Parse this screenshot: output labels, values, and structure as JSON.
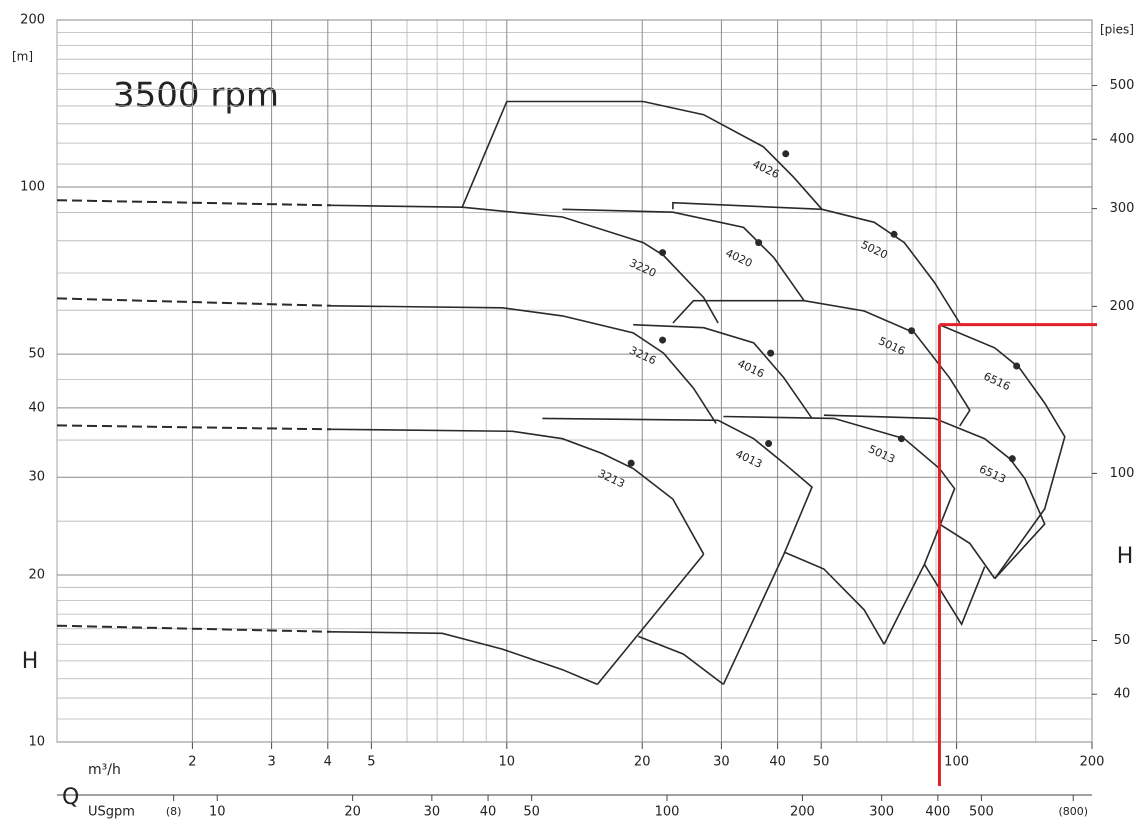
{
  "chart_data": {
    "type": "line",
    "title": "3500 rpm",
    "xlabel": "Q",
    "x_unit": "m³/h",
    "x2_unit": "USgpm",
    "ylabel": "H",
    "y_unit": "[m]",
    "y2label": "H",
    "y2_unit": "[pies]",
    "xscale": "log",
    "yscale": "log",
    "grid": true,
    "color": "#2a2a2a",
    "xlim": [
      1,
      200
    ],
    "xticks": [
      2,
      3,
      4,
      5,
      10,
      20,
      30,
      40,
      50,
      100,
      200
    ],
    "xminor": [
      1,
      6,
      7,
      8,
      9,
      60,
      70,
      80,
      90,
      150
    ],
    "x2lim": [
      4.403,
      880.6
    ],
    "x2ticks": [
      {
        "value": 8,
        "label": "(8)"
      },
      10,
      20,
      30,
      40,
      50,
      100,
      200,
      300,
      400,
      500,
      {
        "value": 800,
        "label": "(800)"
      }
    ],
    "ylim": [
      10,
      200
    ],
    "yticks": [
      10,
      20,
      30,
      40,
      50,
      100,
      200
    ],
    "yminor": [
      11,
      12,
      13,
      14,
      15,
      16,
      17,
      18,
      19,
      25,
      35,
      45,
      60,
      70,
      80,
      90,
      110,
      120,
      130,
      140,
      150,
      160,
      170,
      180,
      190
    ],
    "y2lim": [
      32.81,
      656.2
    ],
    "y2ticks": [
      40,
      50,
      100,
      200,
      300,
      400,
      500
    ],
    "series": [
      {
        "style": "dashed",
        "x": [
          1,
          4.07
        ],
        "values": [
          37.2,
          36.6
        ]
      },
      {
        "x": [
          4.07,
          10.3,
          13.3,
          16.3,
          19.1,
          23.4,
          27.4
        ],
        "values": [
          36.6,
          36.3,
          35.2,
          33.1,
          31.1,
          27.4,
          21.8
        ]
      },
      {
        "x": [
          27.4,
          15.9
        ],
        "values": [
          21.8,
          12.7
        ]
      },
      {
        "style": "dashed",
        "x": [
          1,
          4.07
        ],
        "values": [
          16.2,
          15.8
        ]
      },
      {
        "x": [
          4.07,
          7.18,
          9.77,
          13.3,
          15.9
        ],
        "values": [
          15.8,
          15.7,
          14.7,
          13.5,
          12.7
        ]
      },
      {
        "style": "dashed",
        "x": [
          1,
          4.07
        ],
        "values": [
          63.0,
          61.1
        ]
      },
      {
        "x": [
          4.07,
          9.77,
          13.3,
          19.1,
          22.3,
          26.0,
          29.2
        ],
        "values": [
          61.1,
          60.6,
          58.6,
          54.6,
          50.2,
          43.4,
          37.5
        ]
      },
      {
        "style": "dashed",
        "x": [
          1,
          4.07
        ],
        "values": [
          94.7,
          92.7
        ]
      },
      {
        "x": [
          4.07,
          7.96,
          13.3,
          20.1,
          22.3,
          27.4,
          29.5
        ],
        "values": [
          92.7,
          92.0,
          88.3,
          79.4,
          75.3,
          63.2,
          56.9
        ]
      },
      {
        "x": [
          7.96,
          10.0,
          20.1,
          27.4,
          37.2,
          43.4,
          50.2
        ],
        "values": [
          92.0,
          142.6,
          142.6,
          135.0,
          118.2,
          104.2,
          91.2
        ]
      },
      {
        "x": [
          13.3,
          23.4,
          33.6,
          39.2,
          45.8
        ],
        "values": [
          91.2,
          90.1,
          84.6,
          74.7,
          62.4
        ]
      },
      {
        "x": [
          23.4,
          23.4,
          50.2,
          65.6,
          76.5,
          89.3,
          101.6
        ],
        "values": [
          91.2,
          93.7,
          91.2,
          86.4,
          79.4,
          67.3,
          56.9
        ]
      },
      {
        "x": [
          23.4,
          26.0,
          45.8,
          62.3,
          80.6,
          96.5,
          107,
          101.6
        ],
        "values": [
          56.9,
          62.4,
          62.4,
          59.8,
          54.6,
          45.3,
          39.6,
          37.1
        ]
      },
      {
        "x": [
          19.1,
          27.4,
          35.4,
          41.3,
          47.7
        ],
        "values": [
          56.5,
          55.8,
          52.4,
          45.3,
          38.3
        ]
      },
      {
        "x": [
          12.0,
          29.5,
          35.4,
          41.3,
          47.7,
          41.3,
          30.3
        ],
        "values": [
          38.3,
          38.0,
          35.2,
          31.8,
          28.8,
          21.8,
          12.7
        ]
      },
      {
        "x": [
          19.6,
          24.7,
          30.3
        ],
        "values": [
          15.5,
          14.4,
          12.7
        ]
      },
      {
        "x": [
          30.3,
          53.4,
          76.5,
          91.6,
          99.0,
          84.8,
          69.0
        ],
        "values": [
          38.6,
          38.3,
          35.2,
          31.1,
          28.6,
          20.9,
          15.0
        ]
      },
      {
        "x": [
          41.3,
          50.7,
          62.3,
          69.0
        ],
        "values": [
          22.0,
          20.5,
          17.3,
          15.0
        ]
      },
      {
        "x": [
          50.7,
          89.3,
          115.5,
          131.3,
          141.9,
          157,
          121.6
        ],
        "values": [
          38.8,
          38.3,
          35.2,
          32.4,
          29.8,
          24.7,
          19.7
        ]
      },
      {
        "x": [
          91.6,
          107,
          121.6
        ],
        "values": [
          24.7,
          22.8,
          19.7
        ]
      },
      {
        "x": [
          91.6,
          121.6,
          138,
          157,
          174,
          157,
          121.6
        ],
        "values": [
          56.5,
          51.3,
          47.2,
          40.8,
          35.5,
          26.3,
          19.7
        ]
      },
      {
        "x": [
          84.8,
          102.6,
          115.5
        ],
        "values": [
          20.9,
          16.3,
          20.7
        ]
      }
    ],
    "points": [
      {
        "name": "3213",
        "x": 18.9,
        "y": 31.8
      },
      {
        "name": "3216",
        "x": 22.2,
        "y": 53.0
      },
      {
        "name": "3220",
        "x": 22.2,
        "y": 76.2
      },
      {
        "name": "4013",
        "x": 38.2,
        "y": 34.5
      },
      {
        "name": "4016",
        "x": 38.6,
        "y": 50.2
      },
      {
        "name": "4020",
        "x": 36.3,
        "y": 79.4
      },
      {
        "name": "4026",
        "x": 41.7,
        "y": 114.8
      },
      {
        "name": "5013",
        "x": 75.4,
        "y": 35.2
      },
      {
        "name": "5016",
        "x": 79.4,
        "y": 55.1
      },
      {
        "name": "5020",
        "x": 72.6,
        "y": 82.2
      },
      {
        "name": "6513",
        "x": 133,
        "y": 32.4
      },
      {
        "name": "6516",
        "x": 136,
        "y": 47.6
      }
    ],
    "reference": {
      "x": 91.6,
      "y": 56.5,
      "color": "#e3202a"
    }
  }
}
